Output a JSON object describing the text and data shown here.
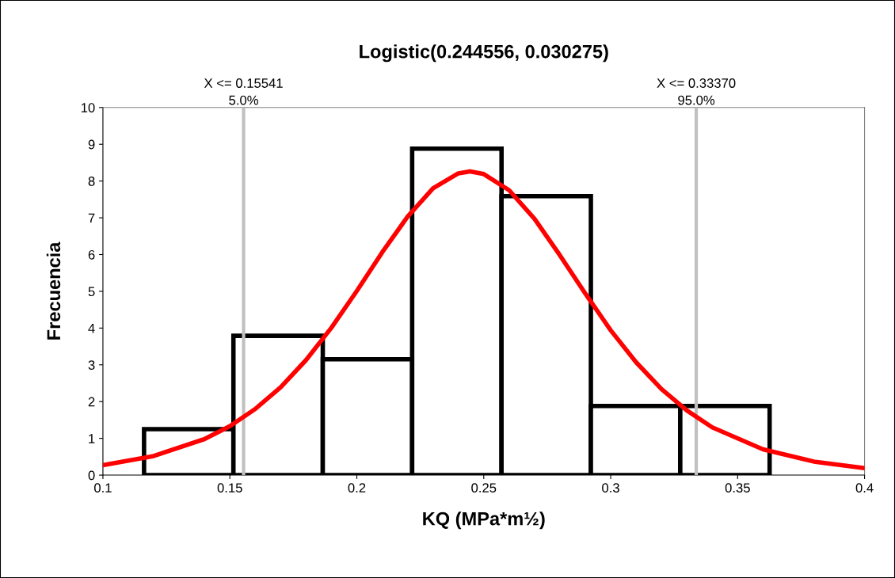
{
  "chart_data": {
    "type": "histogram",
    "title": "Logistic(0.244556, 0.030275)",
    "xlabel": "KQ (MPa*m½)",
    "ylabel": "Frecuencia",
    "series": [
      {
        "color": "#000000",
        "bins": [
          0.1162,
          0.1514,
          0.1866,
          0.2218,
          0.257,
          0.2922,
          0.3274,
          0.3626
        ],
        "values": [
          1.25,
          3.79,
          3.15,
          8.88,
          7.59,
          1.88,
          1.88
        ]
      },
      {
        "type": "line",
        "color": "#ff0000",
        "x": [
          0.1,
          0.12,
          0.14,
          0.15,
          0.16,
          0.17,
          0.18,
          0.19,
          0.2,
          0.21,
          0.22,
          0.23,
          0.24,
          0.2446,
          0.25,
          0.26,
          0.27,
          0.28,
          0.29,
          0.3,
          0.31,
          0.32,
          0.33,
          0.34,
          0.36,
          0.38,
          0.4
        ],
        "values": [
          0.27,
          0.52,
          0.98,
          1.33,
          1.8,
          2.39,
          3.13,
          4.01,
          5.01,
          6.06,
          7.03,
          7.8,
          8.21,
          8.26,
          8.19,
          7.75,
          6.97,
          5.98,
          4.94,
          3.94,
          3.07,
          2.34,
          1.76,
          1.3,
          0.7,
          0.37,
          0.19
        ]
      }
    ],
    "ref_lines": [
      {
        "axis": "x",
        "value": 0.15541,
        "label": "X <= 0.15541\n5.0%",
        "color": "#c0c0c0"
      },
      {
        "axis": "x",
        "value": 0.3337,
        "label": "X <= 0.33370\n95.0%",
        "color": "#c0c0c0"
      }
    ],
    "xlim": [
      0.1,
      0.4
    ],
    "xticks": [
      0.1,
      0.15,
      0.2,
      0.25,
      0.3,
      0.35,
      0.4
    ],
    "ylim": [
      0,
      10
    ],
    "yticks": [
      0,
      1,
      2,
      3,
      4,
      5,
      6,
      7,
      8,
      9,
      10
    ],
    "grid": false,
    "legend": false
  }
}
